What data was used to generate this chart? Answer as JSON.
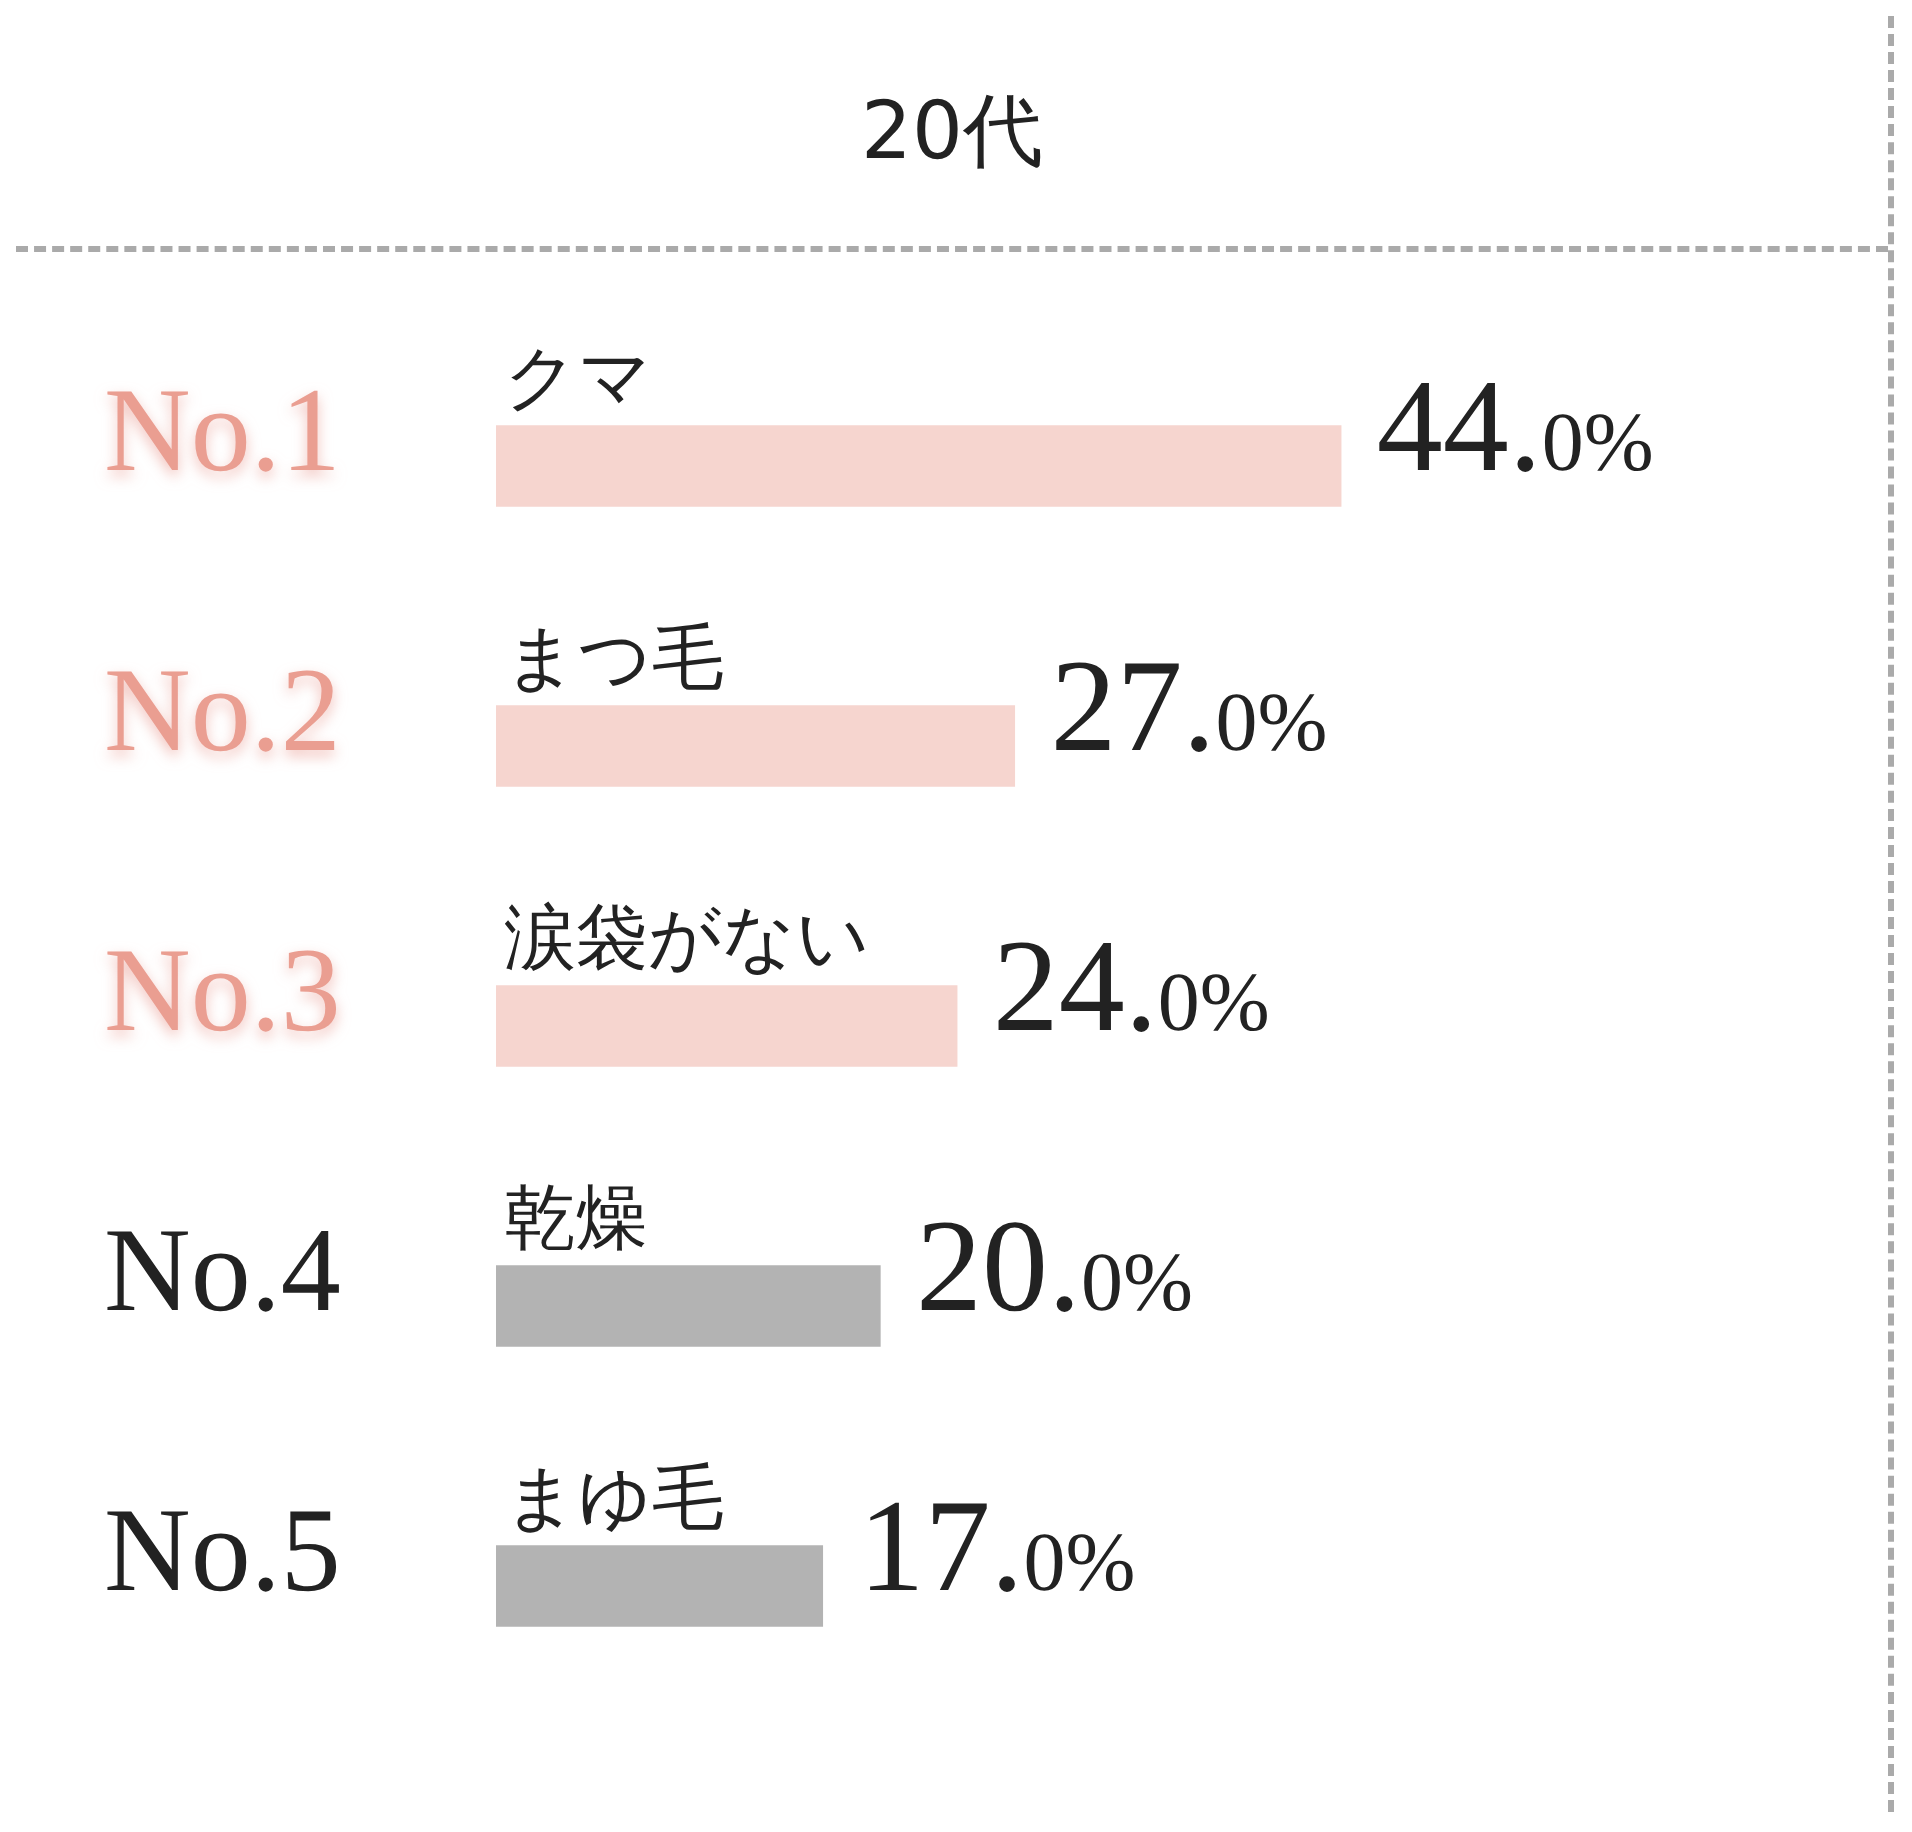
{
  "chart_data": {
    "type": "bar",
    "orientation": "horizontal",
    "title": "20代",
    "categories": [
      "クマ",
      "まつ毛",
      "涙袋がない",
      "乾燥",
      "まゆ毛"
    ],
    "values": [
      44.0,
      27.0,
      24.0,
      20.0,
      17.0
    ],
    "colors": [
      "#f6d5cf",
      "#f6d5cf",
      "#f6d5cf",
      "#b3b3b3",
      "#b3b3b3"
    ],
    "value_labels": [
      "44.0%",
      "27.0%",
      "24.0%",
      "20.0%",
      "17.0%"
    ],
    "annotations": [
      "No.1",
      "No.2",
      "No.3",
      "No.4",
      "No.5"
    ],
    "legend": false
  }
}
